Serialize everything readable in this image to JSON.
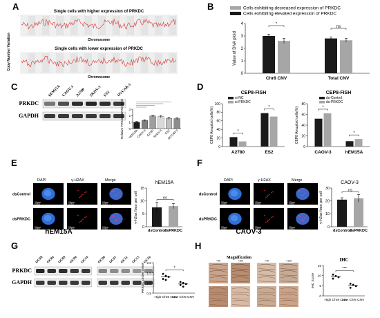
{
  "panels": {
    "A": {
      "letter": "A",
      "top_title": "Single cells with higher expression of PRKDC",
      "bottom_title": "Single cells with lower expression of PRKDC",
      "ylabel": "Copy Number Variation",
      "xlabel": "Chromosome"
    },
    "B": {
      "letter": "B",
      "chart_data": {
        "type": "bar",
        "categories": [
          "Chr8 CNV",
          "Total CNV"
        ],
        "series": [
          {
            "name": "Cells exhibiting elevated expression of PRKDC",
            "values": [
              3.0,
              2.8
            ],
            "errors": [
              0.15,
              0.12
            ],
            "color": "#1a1a1a"
          },
          {
            "name": "Cells exhibiting decreased expression of PRKDC",
            "values": [
              2.6,
              2.65
            ],
            "errors": [
              0.2,
              0.15
            ],
            "color": "#a6a6a6"
          }
        ],
        "ylabel": "Value of DNA ploid",
        "ylim": [
          0,
          4
        ],
        "yticks": [
          "0",
          "1",
          "2",
          "3",
          "4"
        ],
        "significance": [
          "*",
          "ns"
        ],
        "legend": "top"
      }
    },
    "C": {
      "letter": "C",
      "blot_rows": [
        "PRKDC",
        "GAPDH"
      ],
      "lanes": [
        "hEM15A",
        "CAOV-3",
        "A2780",
        "SKOV-3",
        "ES2",
        "OVCAR-3"
      ],
      "chart_data": {
        "type": "bar",
        "categories": [
          "hEM15A",
          "CAOV-3",
          "A2780",
          "SKOV-3",
          "ES2",
          "OVCAR-3"
        ],
        "values": [
          1.0,
          1.25,
          1.95,
          1.85,
          1.6,
          1.55
        ],
        "errors": [
          0.1,
          0.12,
          0.15,
          0.2,
          0.18,
          0.15
        ],
        "colors": [
          "#1a1a1a",
          "#7f7f7f",
          "#9e9e9e",
          "#d9d9d9",
          "#bfbfbf",
          "#8c8c8c"
        ],
        "ylabel": "Relative PRKDC mRNA level",
        "ylim": [
          0,
          3
        ],
        "yticks": [
          "0",
          "1",
          "2",
          "3"
        ]
      }
    },
    "D": {
      "letter": "D",
      "left": {
        "chart_data": {
          "type": "bar",
          "title": "CEP8-FISH",
          "categories": [
            "A2780",
            "ES2"
          ],
          "series": [
            {
              "name": "si-NC",
              "values": [
                22,
                78
              ],
              "color": "#1a1a1a"
            },
            {
              "name": "si-PRKDC",
              "values": [
                12,
                70
              ],
              "color": "#a6a6a6"
            }
          ],
          "ylabel": "CEP8 Amuploid cells(%)",
          "ylim": [
            0,
            100
          ],
          "yticks": [
            "0",
            "20",
            "40",
            "60",
            "80",
            "100"
          ],
          "significance": [
            "*",
            "*"
          ]
        }
      },
      "right": {
        "chart_data": {
          "type": "bar",
          "title": "CEP8-FISH",
          "categories": [
            "CAOV-3",
            "hEM15A"
          ],
          "series": [
            {
              "name": "ds-Control",
              "values": [
                52,
                10
              ],
              "color": "#1a1a1a"
            },
            {
              "name": "ds-PRKDC",
              "values": [
                62,
                14
              ],
              "color": "#a6a6a6"
            }
          ],
          "ylabel": "CEP8 Amuploid cells(%)",
          "ylim": [
            0,
            80
          ],
          "yticks": [
            "0",
            "20",
            "40",
            "60",
            "80"
          ],
          "significance": [
            "*",
            "*"
          ]
        }
      }
    },
    "E": {
      "letter": "E",
      "columns": [
        "DAPI",
        "γ-H2AX",
        "Merge"
      ],
      "rows": [
        "dsControl",
        "dsPRKDC"
      ],
      "scale_bar": "10μm",
      "cell_line": "hEM15A",
      "chart_data": {
        "type": "bar",
        "title": "hEM15A",
        "categories": [
          "dsControl",
          "dsPRKDC"
        ],
        "values": [
          7.5,
          8.0
        ],
        "errors": [
          2.0,
          1.0
        ],
        "colors": [
          "#1a1a1a",
          "#a6a6a6"
        ],
        "ylabel": "γ-h2ax foco per cell",
        "ylim": [
          0,
          15
        ],
        "yticks": [
          "0",
          "5",
          "10",
          "15"
        ],
        "significance": "ns"
      }
    },
    "F": {
      "letter": "F",
      "columns": [
        "DAPI",
        "γ-H2AX",
        "Merge"
      ],
      "rows": [
        "dsControl",
        "dsPRKDC"
      ],
      "scale_bar": "10μm",
      "cell_line": "CAOV-3",
      "chart_data": {
        "type": "bar",
        "title": "CAOV-3",
        "categories": [
          "dsControl",
          "dsPRKDC"
        ],
        "values": [
          21,
          22
        ],
        "errors": [
          1.5,
          3.0
        ],
        "colors": [
          "#1a1a1a",
          "#a6a6a6"
        ],
        "ylabel": "γ-h2ax foco per cell",
        "ylim": [
          0,
          30
        ],
        "yticks": [
          "0",
          "10",
          "20",
          "30"
        ],
        "significance": "ns"
      }
    },
    "G": {
      "letter": "G",
      "blot_rows": [
        "PRKDC",
        "GAPDH"
      ],
      "lanes": [
        "OC98",
        "OC84",
        "OC89",
        "OC90",
        "OC14",
        "OC96",
        "OC97",
        "OC11",
        "OC13",
        "OC16"
      ],
      "chart_data": {
        "type": "scatter",
        "categories": [
          "High Chr8 CNV",
          "Low Chr8 CNV"
        ],
        "groups": [
          {
            "name": "High Chr8 CNV",
            "values": [
              1.45,
              1.35,
              1.3,
              1.2,
              1.15
            ],
            "mean": 1.3
          },
          {
            "name": "Low Chr8 CNV",
            "values": [
              1.05,
              1.0,
              0.95,
              0.9,
              0.82
            ],
            "mean": 0.95
          }
        ],
        "ylabel": "PRKDC protein level",
        "ylim": [
          0.5,
          2.0
        ],
        "yticks": [
          "0.5",
          "1.0",
          "1.5",
          "2.0"
        ],
        "significance": "*"
      }
    },
    "H": {
      "letter": "H",
      "title": "Magnification",
      "mag_labels": [
        "×40",
        "×100",
        "×40",
        "×100"
      ],
      "chart_data": {
        "type": "scatter",
        "title": "IHC",
        "categories": [
          "High Chr8 CNV",
          "Low Chr8 CNV"
        ],
        "groups": [
          {
            "name": "High Chr8 CNV",
            "values": [
              10.5,
              9.8,
              9.2,
              8.5
            ],
            "mean": 9.5
          },
          {
            "name": "Low Chr8 CNV",
            "values": [
              6.0,
              5.5,
              4.8,
              4.0
            ],
            "mean": 5.1
          }
        ],
        "ylabel": "IHC Score",
        "ylim": [
          0,
          15
        ],
        "yticks": [
          "0",
          "5",
          "10",
          "15"
        ],
        "significance": "***"
      }
    }
  }
}
